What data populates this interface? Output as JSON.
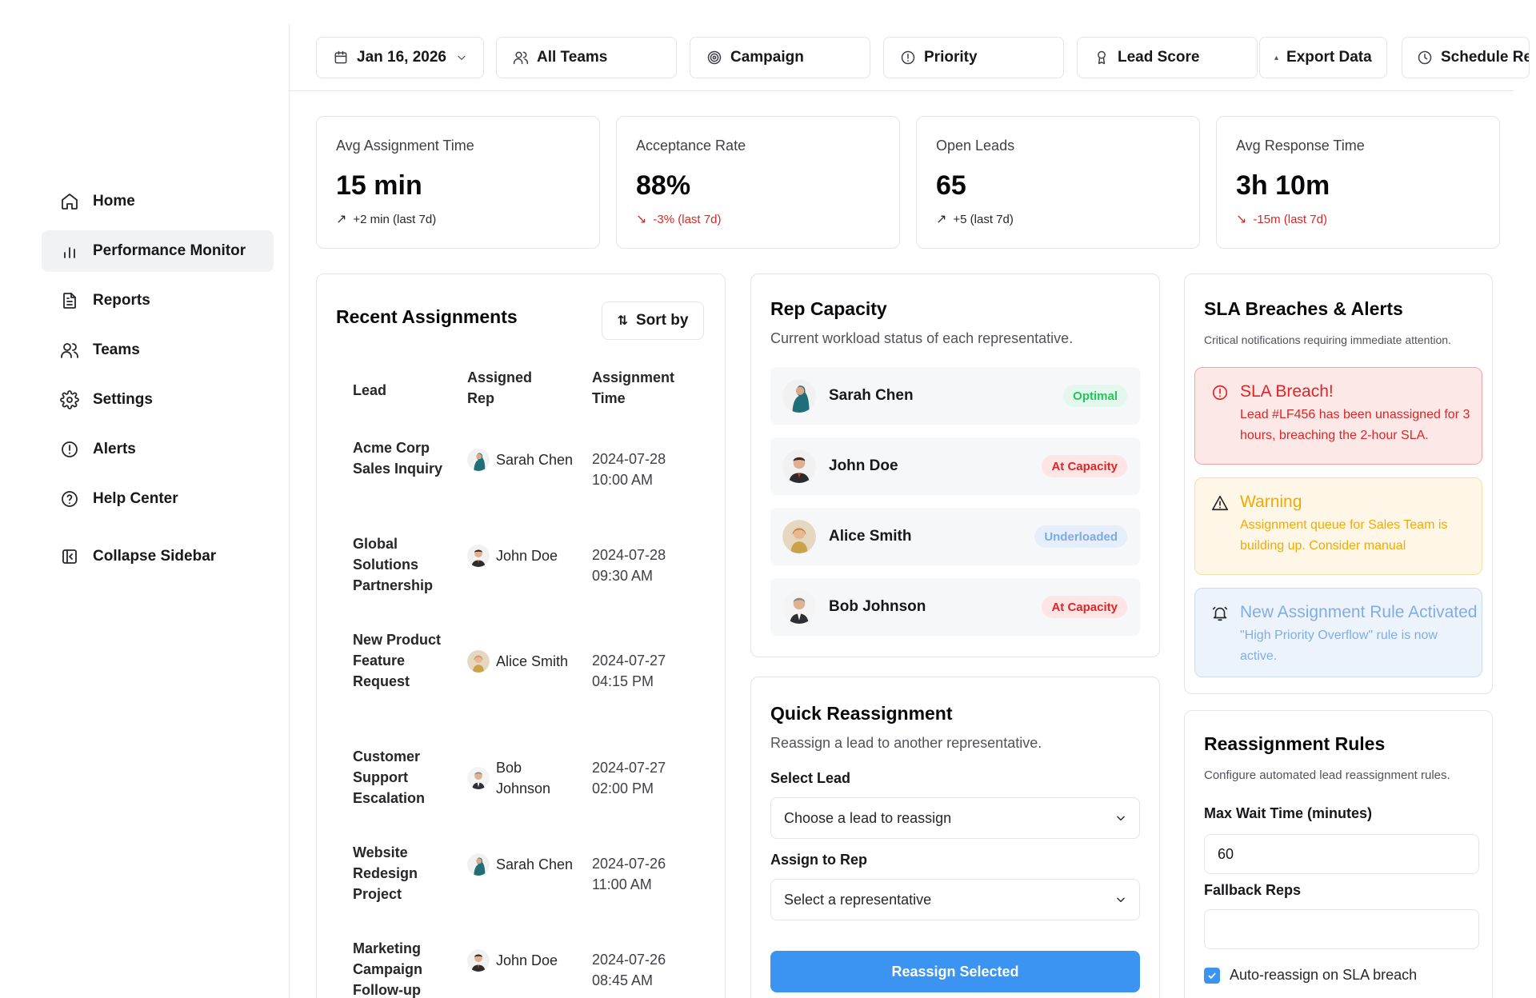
{
  "sidebar": {
    "items": [
      {
        "label": "Home",
        "icon": "home-icon"
      },
      {
        "label": "Performance Monitor",
        "icon": "bar-chart-icon",
        "active": true
      },
      {
        "label": "Reports",
        "icon": "file-text-icon"
      },
      {
        "label": "Teams",
        "icon": "users-icon"
      },
      {
        "label": "Settings",
        "icon": "gear-icon"
      },
      {
        "label": "Alerts",
        "icon": "alert-circle-icon"
      },
      {
        "label": "Help Center",
        "icon": "help-circle-icon"
      }
    ],
    "collapse_label": "Collapse Sidebar"
  },
  "toolbar": {
    "date": "Jan 16, 2026",
    "teams": "All Teams",
    "campaign": "Campaign",
    "priority": "Priority",
    "lead_score": "Lead Score",
    "export": "Export Data",
    "schedule": "Schedule Re"
  },
  "stats": [
    {
      "label": "Avg Assignment Time",
      "value": "15 min",
      "change": "+2 min (last 7d)",
      "direction": "up"
    },
    {
      "label": "Acceptance Rate",
      "value": "88%",
      "change": "-3% (last 7d)",
      "direction": "down"
    },
    {
      "label": "Open Leads",
      "value": "65",
      "change": "+5 (last 7d)",
      "direction": "up"
    },
    {
      "label": "Avg Response Time",
      "value": "3h 10m",
      "change": "-15m (last 7d)",
      "direction": "down"
    }
  ],
  "recent": {
    "title": "Recent Assignments",
    "sort_label": "Sort by",
    "headers": [
      "Lead",
      "Assigned Rep",
      "Assignment Time"
    ],
    "rows": [
      {
        "lead": "Acme Corp Sales Inquiry",
        "rep": "Sarah Chen",
        "time": "2024-07-28 10:00 AM"
      },
      {
        "lead": "Global Solutions Partnership",
        "rep": "John Doe",
        "time": "2024-07-28 09:30 AM"
      },
      {
        "lead": "New Product Feature Request",
        "rep": "Alice Smith",
        "time": "2024-07-27 04:15 PM"
      },
      {
        "lead": "Customer Support Escalation",
        "rep": "Bob Johnson",
        "time": "2024-07-27 02:00 PM"
      },
      {
        "lead": "Website Redesign Project",
        "rep": "Sarah Chen",
        "time": "2024-07-26 11:00 AM"
      },
      {
        "lead": "Marketing Campaign Follow-up",
        "rep": "John Doe",
        "time": "2024-07-26 08:45 AM"
      }
    ]
  },
  "capacity": {
    "title": "Rep Capacity",
    "desc": "Current workload status of each representative.",
    "reps": [
      {
        "name": "Sarah Chen",
        "status": "Optimal"
      },
      {
        "name": "John Doe",
        "status": "At Capacity"
      },
      {
        "name": "Alice Smith",
        "status": "Underloaded"
      },
      {
        "name": "Bob Johnson",
        "status": "At Capacity"
      }
    ]
  },
  "quick": {
    "title": "Quick Reassignment",
    "desc": "Reassign a lead to another representative.",
    "lead_label": "Select Lead",
    "lead_placeholder": "Choose a lead to reassign",
    "rep_label": "Assign to Rep",
    "rep_placeholder": "Select a representative",
    "button": "Reassign Selected"
  },
  "sla": {
    "title": "SLA Breaches & Alerts",
    "desc": "Critical notifications requiring immediate attention.",
    "alerts": [
      {
        "title": "SLA Breach!",
        "body": "Lead #LF456 has been unassigned for 3 hours, breaching the 2-hour SLA."
      },
      {
        "title": "Warning",
        "body": "Assignment queue for Sales Team is building up. Consider manual"
      },
      {
        "title": "New Assignment Rule Activated",
        "body": "\"High Priority Overflow\" rule is now active."
      }
    ]
  },
  "rules": {
    "title": "Reassignment Rules",
    "desc": "Configure automated lead reassignment rules.",
    "max_wait_label": "Max Wait Time (minutes)",
    "max_wait_value": "60",
    "fallback_label": "Fallback Reps",
    "fallback_value": "",
    "auto_label": "Auto-reassign on SLA breach",
    "auto_checked": true
  }
}
